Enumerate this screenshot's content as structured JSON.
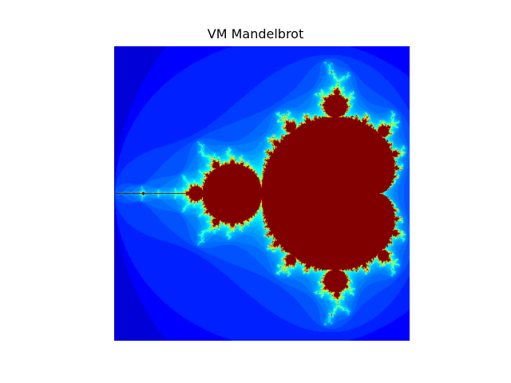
{
  "figure": {
    "title": "VM Mandelbrot",
    "background": "#ffffff"
  },
  "fractal": {
    "type": "mandelbrot",
    "colormap": "jet",
    "inside_color": "#800000",
    "outside_color": "#00007f",
    "re_range": [
      -2.0,
      0.5
    ],
    "im_range": [
      -1.25,
      1.25
    ],
    "max_iterations": 80,
    "grid": false
  }
}
